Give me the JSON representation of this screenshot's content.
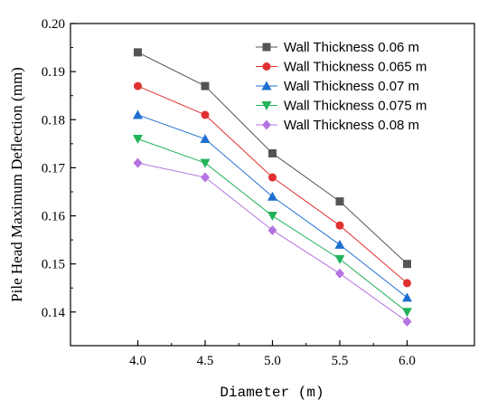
{
  "chart_data": {
    "type": "line",
    "xlabel": "Diameter (m)",
    "ylabel": "Pile Head Maximum Deflection (mm)",
    "x": [
      4.0,
      4.5,
      5.0,
      5.5,
      6.0
    ],
    "x_tick_labels": [
      "4.0",
      "4.5",
      "5.0",
      "5.5",
      "6.0"
    ],
    "y_tick_labels": [
      "0.14",
      "0.15",
      "0.16",
      "0.17",
      "0.18",
      "0.19",
      "0.20"
    ],
    "y_ticks": [
      0.14,
      0.15,
      0.16,
      0.17,
      0.18,
      0.19,
      0.2
    ],
    "xlim": [
      3.5,
      6.5
    ],
    "ylim": [
      0.133,
      0.2
    ],
    "grid": false,
    "legend_position": "top-right",
    "series": [
      {
        "name": "Wall Thickness 0.06 m",
        "values": [
          0.194,
          0.187,
          0.173,
          0.163,
          0.15
        ],
        "color": "#555555",
        "marker": "square"
      },
      {
        "name": "Wall Thickness 0.065 m",
        "values": [
          0.187,
          0.181,
          0.168,
          0.158,
          0.146
        ],
        "color": "#e03030",
        "marker": "circle"
      },
      {
        "name": "Wall Thickness 0.07 m",
        "values": [
          0.181,
          0.176,
          0.164,
          0.154,
          0.143
        ],
        "color": "#1f6fd0",
        "marker": "triangle-up"
      },
      {
        "name": "Wall Thickness 0.075 m",
        "values": [
          0.176,
          0.171,
          0.16,
          0.151,
          0.14
        ],
        "color": "#22b35a",
        "marker": "triangle-down"
      },
      {
        "name": "Wall Thickness 0.08 m",
        "values": [
          0.171,
          0.168,
          0.157,
          0.148,
          0.138
        ],
        "color": "#b473e0",
        "marker": "diamond"
      }
    ]
  }
}
